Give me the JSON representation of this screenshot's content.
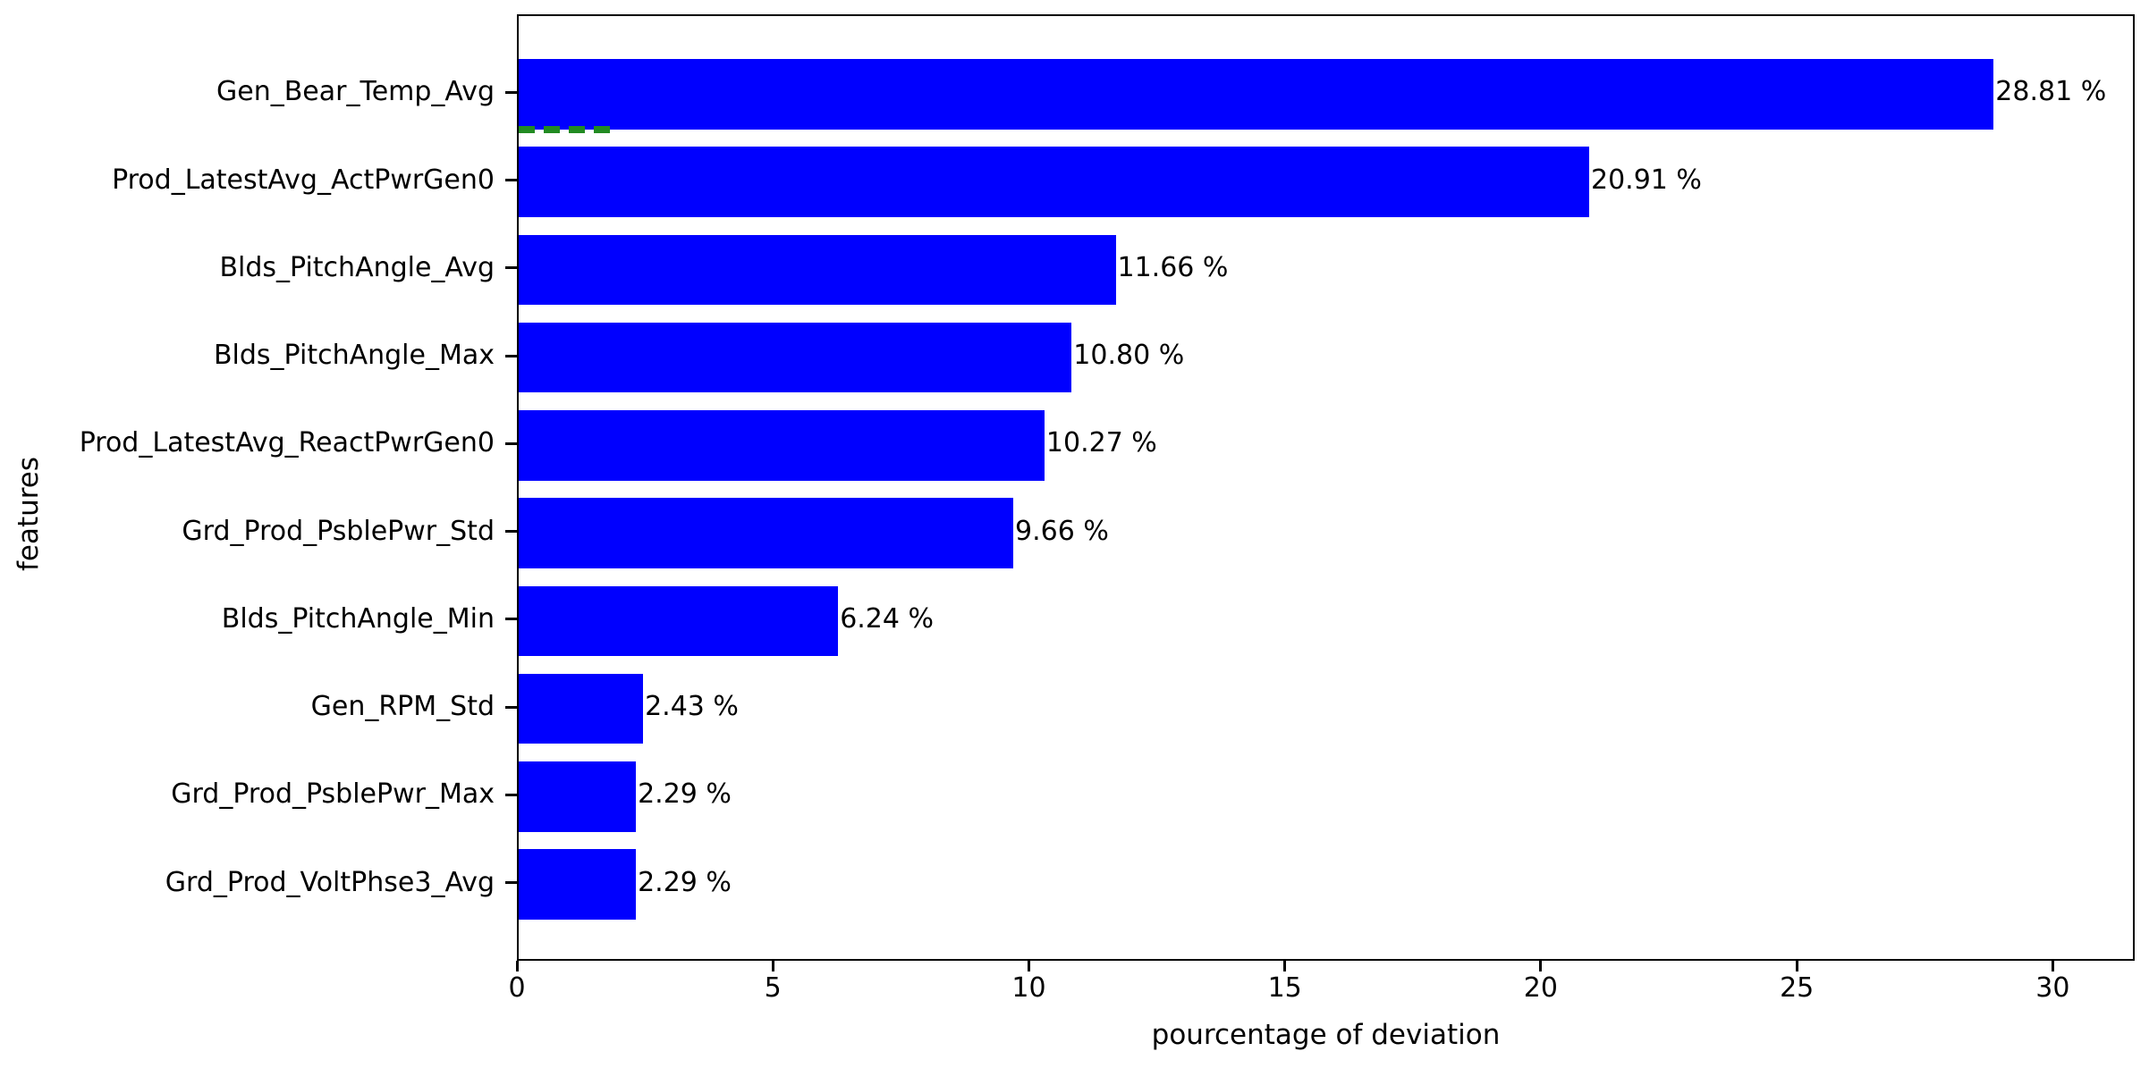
{
  "chart_data": {
    "type": "bar",
    "orientation": "horizontal",
    "title": "",
    "xlabel": "pourcentage of deviation",
    "ylabel": "features",
    "categories": [
      "Gen_Bear_Temp_Avg",
      "Prod_LatestAvg_ActPwrGen0",
      "Blds_PitchAngle_Avg",
      "Blds_PitchAngle_Max",
      "Prod_LatestAvg_ReactPwrGen0",
      "Grd_Prod_PsblePwr_Std",
      "Blds_PitchAngle_Min",
      "Gen_RPM_Std",
      "Grd_Prod_PsblePwr_Max",
      "Grd_Prod_VoltPhse3_Avg"
    ],
    "values": [
      28.81,
      20.91,
      11.66,
      10.8,
      10.27,
      9.66,
      6.24,
      2.43,
      2.29,
      2.29
    ],
    "value_labels": [
      "28.81 %",
      "20.91 %",
      "11.66 %",
      "10.80 %",
      "10.27 %",
      "9.66 %",
      "6.24 %",
      "2.43 %",
      "2.29 %",
      "2.29 %"
    ],
    "xticks": [
      0,
      5,
      10,
      15,
      20,
      25,
      30
    ],
    "xtick_labels": [
      "0",
      "5",
      "10",
      "15",
      "20",
      "25",
      "30"
    ],
    "xlim": [
      0,
      31.6
    ],
    "grid": false,
    "legend": null,
    "bar_color": "#0000ff",
    "axis_color": "#000000",
    "text_color": "#000000",
    "annotations": [
      {
        "type": "dashed_line",
        "description": "green dashed threshold segment at bottom edge of first bar",
        "color": "#228b22",
        "row": 0,
        "x_start": 0,
        "x_end": 1.9
      }
    ]
  }
}
